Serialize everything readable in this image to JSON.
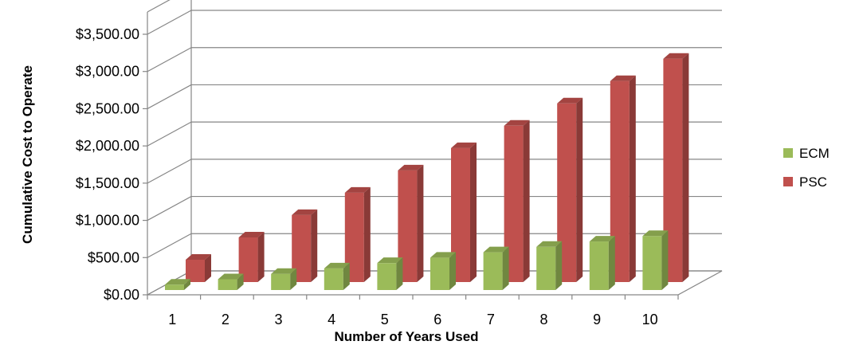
{
  "chart_data": {
    "type": "bar",
    "style": "3d-clustered-column",
    "categories": [
      "1",
      "2",
      "3",
      "4",
      "5",
      "6",
      "7",
      "8",
      "9",
      "10"
    ],
    "series": [
      {
        "name": "ECM",
        "color": "#9BBB59",
        "values": [
          72,
          145,
          217,
          290,
          362,
          435,
          507,
          580,
          652,
          725
        ]
      },
      {
        "name": "PSC",
        "color": "#C0504D",
        "values": [
          300,
          600,
          900,
          1200,
          1500,
          1800,
          2100,
          2400,
          2700,
          3000
        ]
      }
    ],
    "yticks": [
      "$0.00",
      "$500.00",
      "$1,000.00",
      "$1,500.00",
      "$2,000.00",
      "$2,500.00",
      "$3,000.00",
      "$3,500.00"
    ],
    "ylim": [
      0,
      3500
    ],
    "xlabel": "Number of Years Used",
    "ylabel": "Cumulative Cost to Operate",
    "grid": true,
    "legend_position": "right"
  }
}
